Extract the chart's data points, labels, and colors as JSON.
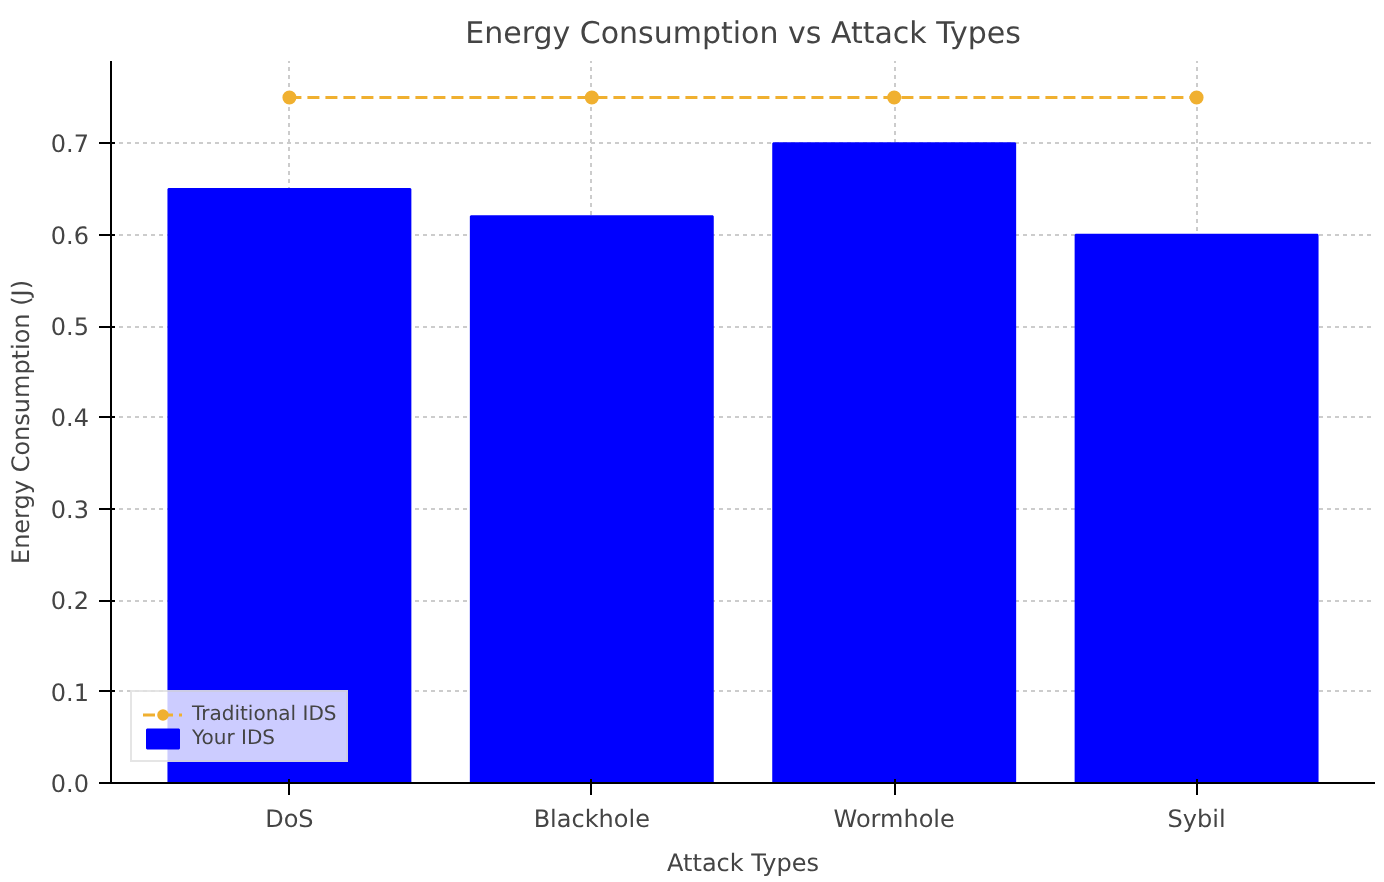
{
  "chart_data": {
    "type": "bar",
    "title": "Energy Consumption vs Attack Types",
    "xlabel": "Attack Types",
    "ylabel": "Energy Consumption (J)",
    "categories": [
      "DoS",
      "Blackhole",
      "Wormhole",
      "Sybil"
    ],
    "series": [
      {
        "name": "Traditional IDS",
        "type": "line",
        "color": "#f0b030",
        "values": [
          0.75,
          0.75,
          0.75,
          0.75
        ],
        "marker": "circle",
        "line_style": "dashed"
      },
      {
        "name": "Your IDS",
        "color": "#0000ff",
        "values": [
          0.65,
          0.62,
          0.7,
          0.6
        ]
      }
    ],
    "ylim": [
      0,
      0.79
    ],
    "yticks": [
      {
        "value": 0,
        "label": "0.0"
      },
      0.1,
      0.2,
      0.3,
      0.4,
      0.5,
      0.6,
      0.7
    ],
    "grid": true,
    "legend": "bottom left"
  }
}
